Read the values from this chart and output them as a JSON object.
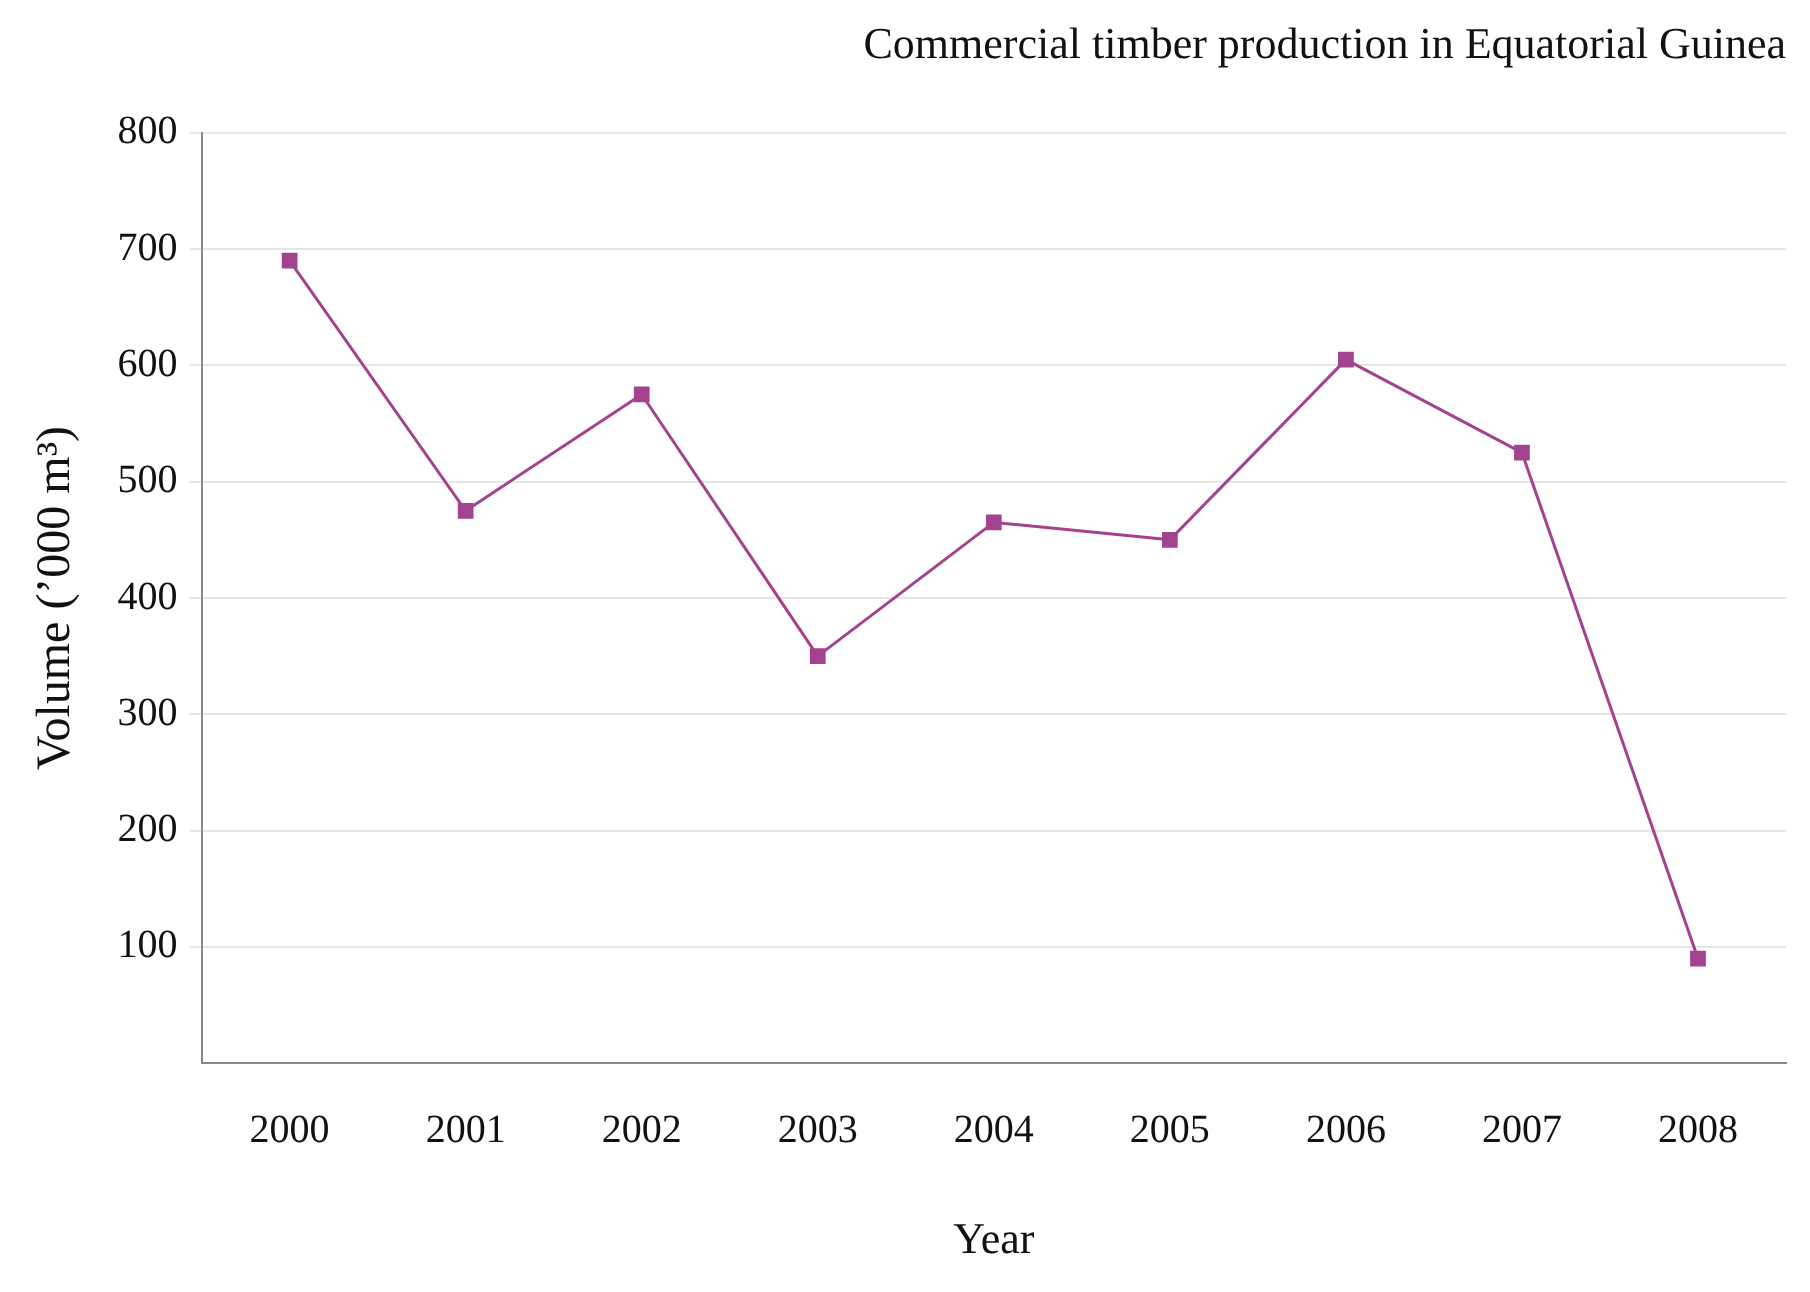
{
  "chart_data": {
    "type": "line",
    "title": "Commercial timber production in Equatorial Guinea",
    "xlabel": "Year",
    "ylabel": "Volume (’000 m³)",
    "categories": [
      "2000",
      "2001",
      "2002",
      "2003",
      "2004",
      "2005",
      "2006",
      "2007",
      "2008"
    ],
    "series": [
      {
        "color": "#a3428f",
        "values": [
          690,
          475,
          575,
          350,
          465,
          450,
          605,
          525,
          90
        ]
      }
    ],
    "ylim": [
      0,
      800
    ],
    "yticks": [
      100,
      200,
      300,
      400,
      500,
      600,
      700,
      800
    ],
    "grid": "y",
    "marker": "square",
    "line_style": "solid",
    "legend": false
  }
}
